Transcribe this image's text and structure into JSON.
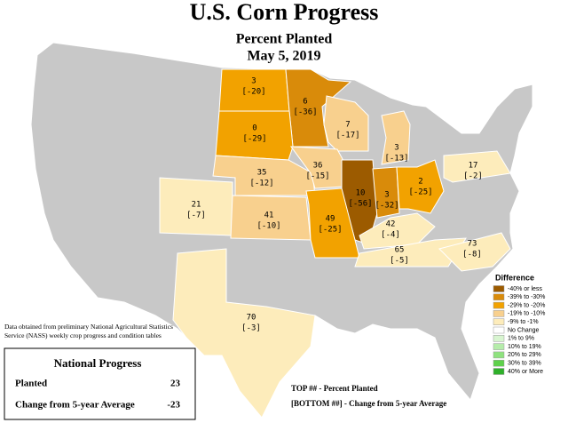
{
  "title": "U.S. Corn Progress",
  "subtitle": "Percent Planted",
  "date": "May 5, 2019",
  "states": [
    {
      "planted": 3,
      "change": "[-20]",
      "color": "#f2a200"
    },
    {
      "planted": 6,
      "change": "[-36]",
      "color": "#d98b0a"
    },
    {
      "planted": 0,
      "change": "[-29]",
      "color": "#f2a200"
    },
    {
      "planted": 7,
      "change": "[-17]",
      "color": "#f8d08e"
    },
    {
      "planted": 3,
      "change": "[-13]",
      "color": "#f8d08e"
    },
    {
      "planted": 35,
      "change": "[-12]",
      "color": "#f8d08e"
    },
    {
      "planted": 36,
      "change": "[-15]",
      "color": "#f8d08e"
    },
    {
      "planted": 10,
      "change": "[-56]",
      "color": "#9c5b00"
    },
    {
      "planted": 3,
      "change": "[-32]",
      "color": "#d98b0a"
    },
    {
      "planted": 2,
      "change": "[-25]",
      "color": "#f2a200"
    },
    {
      "planted": 17,
      "change": "[-2]",
      "color": "#fdecbb"
    },
    {
      "planted": 21,
      "change": "[-7]",
      "color": "#fdecbb"
    },
    {
      "planted": 41,
      "change": "[-10]",
      "color": "#f8d08e"
    },
    {
      "planted": 49,
      "change": "[-25]",
      "color": "#f2a200"
    },
    {
      "planted": 42,
      "change": "[-4]",
      "color": "#fdecbb"
    },
    {
      "planted": 65,
      "change": "[-5]",
      "color": "#fdecbb"
    },
    {
      "planted": 73,
      "change": "[-8]",
      "color": "#fdecbb"
    },
    {
      "planted": 70,
      "change": "[-3]",
      "color": "#fdecbb"
    }
  ],
  "legend": {
    "title": "Difference",
    "items": [
      {
        "label": "-40% or less",
        "color": "#9c5b00"
      },
      {
        "label": "-39% to -30%",
        "color": "#d98b0a"
      },
      {
        "label": "-29% to -20%",
        "color": "#f2a200"
      },
      {
        "label": "-19% to -10%",
        "color": "#f8d08e"
      },
      {
        "label": "-9% to -1%",
        "color": "#fdecbb"
      },
      {
        "label": "No Change",
        "color": "#ffffff"
      },
      {
        "label": "1% to 9%",
        "color": "#d8f5d0"
      },
      {
        "label": "10% to 19%",
        "color": "#b5ecaa"
      },
      {
        "label": "20% to 29%",
        "color": "#8ee27e"
      },
      {
        "label": "30% to 39%",
        "color": "#5ed14b"
      },
      {
        "label": "40% or More",
        "color": "#2fb02a"
      }
    ]
  },
  "source_note": "Data obtained from preliminary National Agricultural Statistics Service (NASS) weekly crop progress and condition tables",
  "national": {
    "title": "National Progress",
    "rows": [
      [
        "Planted",
        "23"
      ],
      [
        "Change from 5-year Average",
        "-23"
      ]
    ]
  },
  "key": [
    "TOP ## - Percent Planted",
    "[BOTTOM ##] - Change from 5-year Average"
  ]
}
